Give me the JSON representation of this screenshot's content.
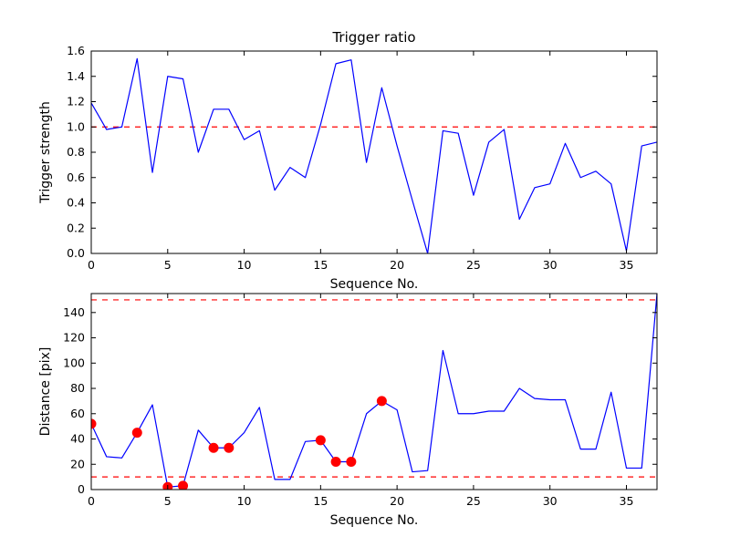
{
  "figure": {
    "background": "#ffffff",
    "frame_color": "#000000"
  },
  "chart_data": [
    {
      "type": "line",
      "title": "Trigger ratio",
      "xlabel": "Sequence No.",
      "ylabel": "Trigger strength",
      "xlim": [
        0,
        37
      ],
      "ylim": [
        0,
        1.6
      ],
      "xticks": [
        0,
        5,
        10,
        15,
        20,
        25,
        30,
        35
      ],
      "xtick_labels": [
        "0",
        "5",
        "10",
        "15",
        "20",
        "25",
        "30",
        "35"
      ],
      "yticks": [
        0,
        0.2,
        0.4,
        0.6,
        0.8,
        1.0,
        1.2,
        1.4,
        1.6
      ],
      "ytick_labels": [
        "0.0",
        "0.2",
        "0.4",
        "0.6",
        "0.8",
        "1.0",
        "1.2",
        "1.4",
        "1.6"
      ],
      "grid": false,
      "legend": null,
      "line_color": "#0000ff",
      "ref_lines": [
        {
          "y": 1.0,
          "color": "#ff0000",
          "style": "dashed"
        }
      ],
      "x": [
        0,
        1,
        2,
        3,
        4,
        5,
        6,
        7,
        8,
        9,
        10,
        11,
        12,
        13,
        14,
        15,
        16,
        17,
        18,
        19,
        20,
        21,
        22,
        23,
        24,
        25,
        26,
        27,
        28,
        29,
        30,
        31,
        32,
        33,
        34,
        35,
        36,
        37
      ],
      "y": [
        1.19,
        0.98,
        1.0,
        1.54,
        0.64,
        1.4,
        1.38,
        0.8,
        1.14,
        1.14,
        0.9,
        0.97,
        0.5,
        0.68,
        0.6,
        1.02,
        1.5,
        1.53,
        0.72,
        1.31,
        0.85,
        0.42,
        0.0,
        0.97,
        0.95,
        0.46,
        0.88,
        0.98,
        0.27,
        0.52,
        0.55,
        0.87,
        0.6,
        0.65,
        0.55,
        0.02,
        0.85,
        0.88
      ]
    },
    {
      "type": "line",
      "title": "",
      "xlabel": "Sequence No.",
      "ylabel": "Distance [pix]",
      "xlim": [
        0,
        37
      ],
      "ylim": [
        0,
        155
      ],
      "xticks": [
        0,
        5,
        10,
        15,
        20,
        25,
        30,
        35
      ],
      "xtick_labels": [
        "0",
        "5",
        "10",
        "15",
        "20",
        "25",
        "30",
        "35"
      ],
      "yticks": [
        0,
        20,
        40,
        60,
        80,
        100,
        120,
        140
      ],
      "ytick_labels": [
        "0",
        "20",
        "40",
        "60",
        "80",
        "100",
        "120",
        "140"
      ],
      "grid": false,
      "legend": null,
      "line_color": "#0000ff",
      "ref_lines": [
        {
          "y": 150,
          "color": "#ff0000",
          "style": "dashed"
        },
        {
          "y": 10,
          "color": "#ff0000",
          "style": "dashed"
        }
      ],
      "x": [
        0,
        1,
        2,
        3,
        4,
        5,
        6,
        7,
        8,
        9,
        10,
        11,
        12,
        13,
        14,
        15,
        16,
        17,
        18,
        19,
        20,
        21,
        22,
        23,
        24,
        25,
        26,
        27,
        28,
        29,
        30,
        31,
        32,
        33,
        34,
        35,
        36,
        37
      ],
      "y": [
        52,
        26,
        25,
        45,
        67,
        2,
        3,
        47,
        33,
        33,
        45,
        65,
        8,
        8,
        38,
        39,
        22,
        22,
        60,
        70,
        63,
        14,
        15,
        110,
        60,
        60,
        62,
        62,
        80,
        72,
        71,
        71,
        32,
        32,
        77,
        17,
        17,
        155
      ],
      "markers": {
        "shape": "circle",
        "color": "#ff0000",
        "x": [
          0,
          3,
          5,
          6,
          8,
          9,
          15,
          16,
          17,
          19
        ],
        "y": [
          52,
          45,
          2,
          3,
          33,
          33,
          39,
          22,
          22,
          70
        ]
      }
    }
  ]
}
